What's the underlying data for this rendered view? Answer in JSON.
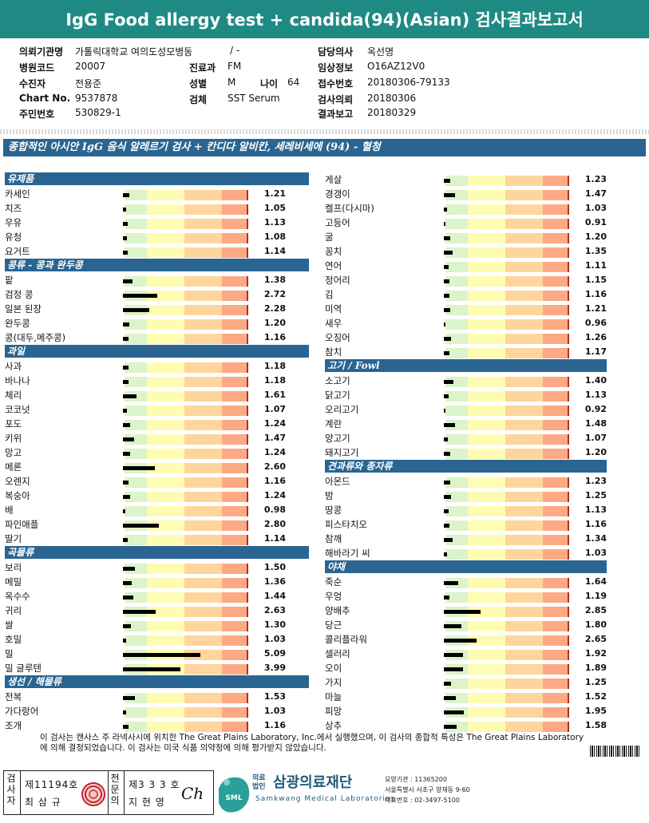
{
  "title": "IgG Food allergy test + candida(94)(Asian) 검사결과보고서",
  "header": {
    "institution": {
      "label": "의뢰기관명",
      "value": "가톨릭대학교 여의도성모병동",
      "ward": "/ -"
    },
    "hospital_code": {
      "label": "병원코드",
      "value": "20007"
    },
    "patient": {
      "label": "수진자",
      "value": "전용준"
    },
    "chart_no": {
      "label": "Chart No.",
      "value": "9537878"
    },
    "resident_no": {
      "label": "주민번호",
      "value": "530829-1"
    },
    "department": {
      "label": "진료과",
      "value": "FM"
    },
    "sex": {
      "label": "성별",
      "value": "M"
    },
    "age": {
      "label": "나이",
      "value": "64"
    },
    "specimen": {
      "label": "검체",
      "value": "SST Serum"
    },
    "doctor": {
      "label": "담당의사",
      "value": "옥선명"
    },
    "clinical_info": {
      "label": "임상정보",
      "value": "O16AZ12V0"
    },
    "accession_no": {
      "label": "접수번호",
      "value": "20180306-79133"
    },
    "request_date": {
      "label": "검사의뢰",
      "value": "20180306"
    },
    "report_date": {
      "label": "결과보고",
      "value": "20180329"
    }
  },
  "main_heading": "종합적인 아시안 IgG 음식 알레르기 검사 + 칸디다 알비칸, 세레비세에 (94) - 혈청",
  "sections_left": [
    {
      "name": "유제품",
      "items": [
        {
          "name": "카세인",
          "value": 1.21
        },
        {
          "name": "치즈",
          "value": 1.05
        },
        {
          "name": "우유",
          "value": 1.13
        },
        {
          "name": "유청",
          "value": 1.08
        },
        {
          "name": "요거트",
          "value": 1.14
        }
      ]
    },
    {
      "name": "콩류 - 콩과 완두콩",
      "items": [
        {
          "name": "팥",
          "value": 1.38
        },
        {
          "name": "검정 콩",
          "value": 2.72
        },
        {
          "name": "일본 된장",
          "value": 2.28
        },
        {
          "name": "완두콩",
          "value": 1.2
        },
        {
          "name": "콩(대두,메주콩)",
          "value": 1.16
        }
      ]
    },
    {
      "name": "과일",
      "items": [
        {
          "name": "사과",
          "value": 1.18
        },
        {
          "name": "바나나",
          "value": 1.18
        },
        {
          "name": "체리",
          "value": 1.61
        },
        {
          "name": "코코넛",
          "value": 1.07
        },
        {
          "name": "포도",
          "value": 1.24
        },
        {
          "name": "키위",
          "value": 1.47
        },
        {
          "name": "망고",
          "value": 1.24
        },
        {
          "name": "메론",
          "value": 2.6
        },
        {
          "name": "오렌지",
          "value": 1.16
        },
        {
          "name": "복숭아",
          "value": 1.24
        },
        {
          "name": "배",
          "value": 0.98
        },
        {
          "name": "파인애플",
          "value": 2.8
        },
        {
          "name": "딸기",
          "value": 1.14
        }
      ]
    },
    {
      "name": "곡물류",
      "items": [
        {
          "name": "보리",
          "value": 1.5
        },
        {
          "name": "메밀",
          "value": 1.36
        },
        {
          "name": "옥수수",
          "value": 1.44
        },
        {
          "name": "귀리",
          "value": 2.63
        },
        {
          "name": "쌀",
          "value": 1.3
        },
        {
          "name": "호밀",
          "value": 1.03
        },
        {
          "name": "밀",
          "value": 5.09
        },
        {
          "name": "밀 글루텐",
          "value": 3.99
        }
      ]
    },
    {
      "name": "생선 / 해물류",
      "items": [
        {
          "name": "전복",
          "value": 1.53
        },
        {
          "name": "가다랑어",
          "value": 1.03
        },
        {
          "name": "조개",
          "value": 1.16
        }
      ]
    }
  ],
  "sections_right": [
    {
      "name": "",
      "items": [
        {
          "name": "게살",
          "value": 1.23
        },
        {
          "name": "경갱이",
          "value": 1.47
        },
        {
          "name": "켈프(다시마)",
          "value": 1.03
        },
        {
          "name": "고등어",
          "value": 0.91
        },
        {
          "name": "굴",
          "value": 1.2
        },
        {
          "name": "꽁치",
          "value": 1.35
        },
        {
          "name": "연어",
          "value": 1.11
        },
        {
          "name": "정어리",
          "value": 1.15
        },
        {
          "name": "김",
          "value": 1.16
        },
        {
          "name": "미역",
          "value": 1.21
        },
        {
          "name": "새우",
          "value": 0.96
        },
        {
          "name": "오징어",
          "value": 1.26
        },
        {
          "name": "참치",
          "value": 1.17
        }
      ]
    },
    {
      "name": "고기 / Fowl",
      "items": [
        {
          "name": "소고기",
          "value": 1.4
        },
        {
          "name": "닭고기",
          "value": 1.13
        },
        {
          "name": "오리고기",
          "value": 0.92
        },
        {
          "name": "계란",
          "value": 1.48
        },
        {
          "name": "양고기",
          "value": 1.07
        },
        {
          "name": "돼지고기",
          "value": 1.2
        }
      ]
    },
    {
      "name": "견과류와 종자류",
      "items": [
        {
          "name": "아몬드",
          "value": 1.23
        },
        {
          "name": "밤",
          "value": 1.25
        },
        {
          "name": "땅콩",
          "value": 1.13
        },
        {
          "name": "피스타치오",
          "value": 1.16
        },
        {
          "name": "참깨",
          "value": 1.34
        },
        {
          "name": "해바라기 씨",
          "value": 1.03
        }
      ]
    },
    {
      "name": "야채",
      "items": [
        {
          "name": "죽순",
          "value": 1.64
        },
        {
          "name": "우엉",
          "value": 1.19
        },
        {
          "name": "양배추",
          "value": 2.85
        },
        {
          "name": "당근",
          "value": 1.8
        },
        {
          "name": "콜리플라워",
          "value": 2.65
        },
        {
          "name": "셀러리",
          "value": 1.92
        },
        {
          "name": "오이",
          "value": 1.89
        },
        {
          "name": "가지",
          "value": 1.25
        },
        {
          "name": "마늘",
          "value": 1.52
        },
        {
          "name": "피망",
          "value": 1.95
        },
        {
          "name": "상추",
          "value": 1.58
        }
      ]
    }
  ],
  "footnote": "이 검사는 캔사스 주 라넥사시에 위치한 The Great Plains Laboratory, Inc.에서 실행했으며, 이 검사의 종합적 특성은 The Great Plains Laboratory에 의해 결정되었습니다. 이 검사는 미국 식품 의약청에 의해 평가받지 않았습니다.",
  "footer": {
    "inspector_label": "검사자",
    "inspector_no": "제11194호",
    "inspector_name": "최 삼 규",
    "reviewer_label": "전문의",
    "reviewer_no": "제3 3 3 호",
    "reviewer_name": "지 현 영",
    "signature": "Ch",
    "org_prefix": "의료법인",
    "org_name": "삼광의료재단",
    "org_english": "Samkwang Medical Laboratories",
    "logo_text": "SML",
    "info_code": "요양기관 : 11365200",
    "info_address": "서울특별시 서초구 양재동 9-60",
    "info_phone": "대표번호 : 02-3497-5100"
  },
  "colors": {
    "accent": "#1f8a84",
    "section": "#2a6592",
    "green": "#dcf4c9",
    "yellow": "#fffcb2",
    "orange": "#ffd59e",
    "salmon": "#fca984"
  }
}
